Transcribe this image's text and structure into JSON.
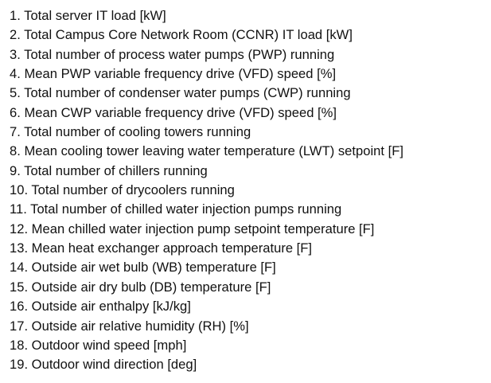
{
  "items": [
    "1. Total server IT load [kW]",
    "2. Total Campus Core Network Room (CCNR) IT load [kW]",
    "3. Total number of process water pumps (PWP) running",
    "4. Mean PWP variable frequency drive (VFD) speed [%]",
    "5. Total number of condenser water pumps (CWP) running",
    "6. Mean CWP variable frequency drive (VFD) speed [%]",
    "7. Total number of cooling towers running",
    "8. Mean cooling tower leaving water temperature (LWT) setpoint [F]",
    "9. Total number of chillers running",
    "10. Total number of drycoolers running",
    "11. Total number of chilled water injection pumps running",
    "12. Mean chilled water injection pump setpoint temperature [F]",
    "13. Mean heat exchanger approach temperature [F]",
    "14. Outside air wet bulb (WB) temperature [F]",
    "15. Outside air dry bulb (DB) temperature [F]",
    "16. Outside air enthalpy [kJ/kg]",
    "17. Outside air relative humidity (RH) [%]",
    "18. Outdoor wind speed [mph]",
    "19. Outdoor wind direction [deg]"
  ]
}
